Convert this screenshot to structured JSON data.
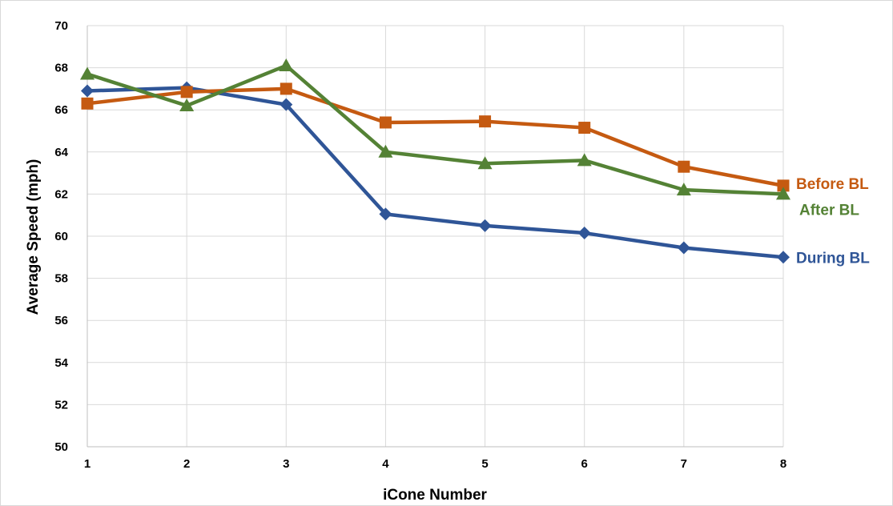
{
  "chart_data": {
    "type": "line",
    "title": "",
    "xlabel": "iCone Number",
    "ylabel": "Average Speed (mph)",
    "x": [
      1,
      2,
      3,
      4,
      5,
      6,
      7,
      8
    ],
    "xticks": [
      "1",
      "2",
      "3",
      "4",
      "5",
      "6",
      "7",
      "8"
    ],
    "ylim": [
      50,
      70
    ],
    "yticks": [
      50,
      52,
      54,
      56,
      58,
      60,
      62,
      64,
      66,
      68,
      70
    ],
    "grid": true,
    "legend": "direct labels at line ends",
    "series": [
      {
        "name": "Before BL",
        "marker": "square",
        "color": "#C55A11",
        "values": [
          66.3,
          66.85,
          67.0,
          65.4,
          65.45,
          65.15,
          63.3,
          62.4
        ]
      },
      {
        "name": "After BL",
        "marker": "triangle",
        "color": "#548235",
        "values": [
          67.7,
          66.2,
          68.1,
          64.0,
          63.45,
          63.6,
          62.2,
          62.0
        ]
      },
      {
        "name": "During BL",
        "marker": "diamond",
        "color": "#2F5597",
        "values": [
          66.9,
          67.05,
          66.25,
          61.05,
          60.5,
          60.15,
          59.45,
          59.0
        ]
      }
    ]
  }
}
